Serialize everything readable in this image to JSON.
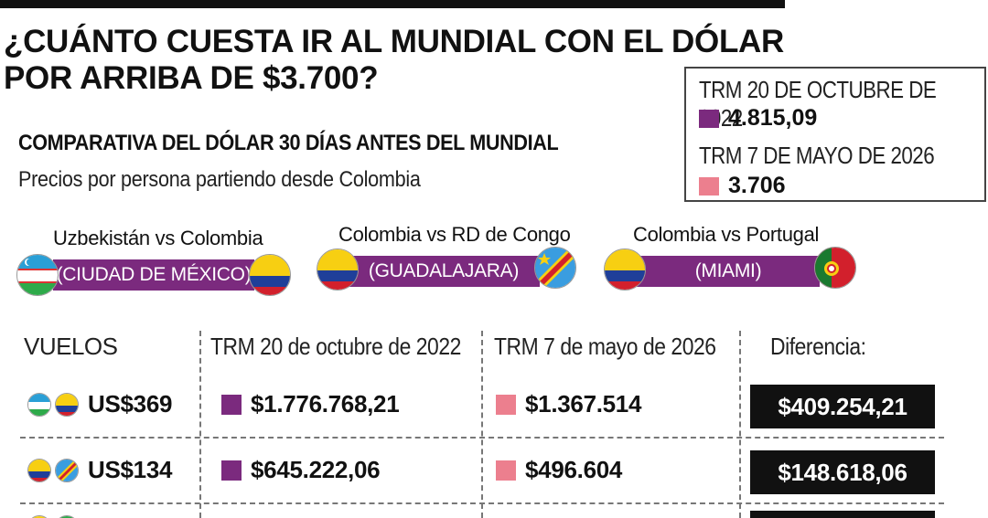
{
  "title_line1": "¿CUÁNTO CUESTA IR AL MUNDIAL CON EL DÓLAR",
  "title_line2": "POR ARRIBA DE $3.700?",
  "trm_box": {
    "label_2022": "TRM 20 DE OCTUBRE DE 2022",
    "value_2022": "4.815,09",
    "label_2026": "TRM 7 DE MAYO DE 2026",
    "value_2026": "3.706"
  },
  "subtitle": "COMPARATIVA DEL DÓLAR 30 DÍAS ANTES DEL MUNDIAL",
  "subtext": "Precios por persona partiendo desde Colombia",
  "matches": [
    {
      "title": "Uzbekistán vs Colombia",
      "venue": "(CIUDAD DE MÉXICO)"
    },
    {
      "title": "Colombia vs RD de Congo",
      "venue": "(GUADALAJARA)"
    },
    {
      "title": "Colombia vs Portugal",
      "venue": "(MIAMI)"
    }
  ],
  "table": {
    "headers": [
      "VUELOS",
      "TRM 20 de octubre de 2022",
      "TRM 7 de mayo de 2026",
      "Diferencia:"
    ],
    "rows": [
      {
        "usd": "US$369",
        "trm2022": "$1.776.768,21",
        "trm2026": "$1.367.514",
        "diff": "$409.254,21"
      },
      {
        "usd": "US$134",
        "trm2022": "$645.222,06",
        "trm2026": "$496.604",
        "diff": "$148.618,06"
      }
    ]
  },
  "colors": {
    "purple": "#7b2a7e",
    "pink": "#ec7f8e",
    "black": "#111111"
  },
  "icons": [
    "uzbekistan-flag-icon",
    "colombia-flag-icon",
    "congo-flag-icon",
    "portugal-flag-icon"
  ]
}
